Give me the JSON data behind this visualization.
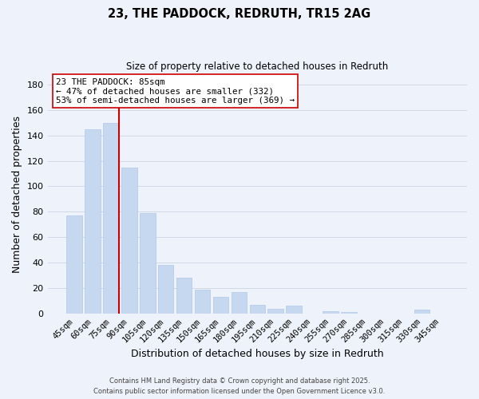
{
  "title": "23, THE PADDOCK, REDRUTH, TR15 2AG",
  "subtitle": "Size of property relative to detached houses in Redruth",
  "xlabel": "Distribution of detached houses by size in Redruth",
  "ylabel": "Number of detached properties",
  "categories": [
    "45sqm",
    "60sqm",
    "75sqm",
    "90sqm",
    "105sqm",
    "120sqm",
    "135sqm",
    "150sqm",
    "165sqm",
    "180sqm",
    "195sqm",
    "210sqm",
    "225sqm",
    "240sqm",
    "255sqm",
    "270sqm",
    "285sqm",
    "300sqm",
    "315sqm",
    "330sqm",
    "345sqm"
  ],
  "values": [
    77,
    145,
    150,
    115,
    79,
    38,
    28,
    19,
    13,
    17,
    7,
    4,
    6,
    0,
    2,
    1,
    0,
    0,
    0,
    3,
    0
  ],
  "bar_color": "#c5d8f0",
  "bar_edge_color": "#b0c8e8",
  "grid_color": "#d0d8e8",
  "background_color": "#eef2fa",
  "marker_line_color": "#cc0000",
  "annotation_text": "23 THE PADDOCK: 85sqm\n← 47% of detached houses are smaller (332)\n53% of semi-detached houses are larger (369) →",
  "annotation_box_color": "white",
  "annotation_box_edge": "#cc0000",
  "ylim": [
    0,
    188
  ],
  "yticks": [
    0,
    20,
    40,
    60,
    80,
    100,
    120,
    140,
    160,
    180
  ],
  "footer_line1": "Contains HM Land Registry data © Crown copyright and database right 2025.",
  "footer_line2": "Contains public sector information licensed under the Open Government Licence v3.0."
}
